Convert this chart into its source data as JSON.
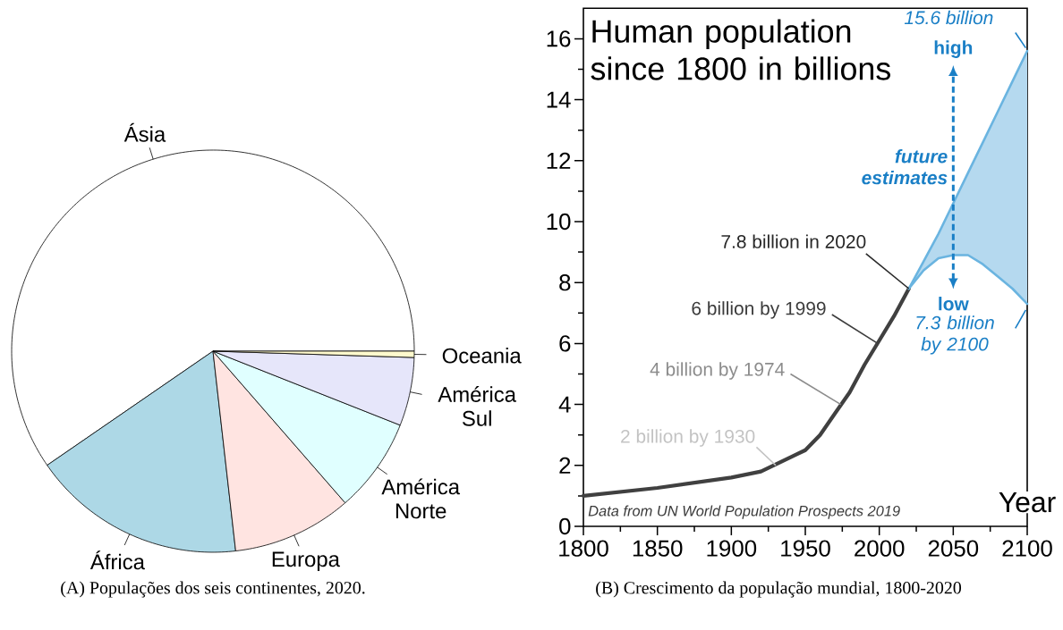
{
  "chart_data": [
    {
      "type": "pie",
      "categories": [
        "Ásia",
        "África",
        "Europa",
        "América Norte",
        "América Sul",
        "Oceania"
      ],
      "values": [
        59.6,
        17.2,
        9.6,
        7.6,
        5.5,
        0.5
      ],
      "colors": [
        "#ffffff",
        "#add8e6",
        "#ffe4e1",
        "#e0ffff",
        "#e6e6fa",
        "#fffacd"
      ],
      "annotations": [
        "(A) Populações dos seis continentes, 2020."
      ]
    },
    {
      "type": "line",
      "title": "Human population since 1800 in billions",
      "xlabel": "Year",
      "xlim": [
        1800,
        2100
      ],
      "ylim": [
        0,
        17
      ],
      "xticks": [
        1800,
        {
          "value": 1825,
          "label": null
        },
        1850,
        {
          "value": 1875,
          "label": null
        },
        1900,
        {
          "value": 1925,
          "label": null
        },
        1950,
        {
          "value": 1975,
          "label": null
        },
        2000,
        {
          "value": 2025,
          "label": null
        },
        2050,
        {
          "value": 2075,
          "label": null
        },
        2100
      ],
      "yticks": [
        0,
        {
          "value": 1,
          "label": null
        },
        2,
        {
          "value": 3,
          "label": null
        },
        4,
        {
          "value": 5,
          "label": null
        },
        6,
        {
          "value": 7,
          "label": null
        },
        8,
        {
          "value": 9,
          "label": null
        },
        10,
        {
          "value": 11,
          "label": null
        },
        12,
        {
          "value": 13,
          "label": null
        },
        14,
        {
          "value": 15,
          "label": null
        },
        16
      ],
      "series": [
        {
          "color": "#404040",
          "x": [
            1800,
            1850,
            1900,
            1920,
            1950,
            1960,
            1970,
            1980,
            1990,
            2000,
            2010,
            2020
          ],
          "values": [
            1.0,
            1.26,
            1.6,
            1.8,
            2.5,
            3.0,
            3.7,
            4.4,
            5.3,
            6.1,
            6.9,
            7.8
          ]
        },
        {
          "color": "#6ab4e0",
          "x": [
            2020,
            2030,
            2040,
            2050,
            2060,
            2070,
            2080,
            2090,
            2100
          ],
          "values": [
            7.8,
            8.7,
            9.6,
            10.6,
            11.6,
            12.6,
            13.6,
            14.6,
            15.6
          ],
          "lower": [
            7.8,
            8.4,
            8.8,
            8.9,
            8.9,
            8.6,
            8.2,
            7.8,
            7.3
          ],
          "upper": [
            7.8,
            8.7,
            9.6,
            10.6,
            11.6,
            12.6,
            13.6,
            14.6,
            15.6
          ]
        },
        {
          "color": "#6ab4e0",
          "x": [
            2020,
            2030,
            2040,
            2050,
            2060,
            2070,
            2080,
            2090,
            2100
          ],
          "values": [
            7.8,
            8.4,
            8.8,
            8.9,
            8.9,
            8.6,
            8.2,
            7.8,
            7.3
          ]
        }
      ],
      "annotations": [
        "Data from UN World Population Prospects 2019",
        {
          "text": "7.8 billion in 2020",
          "x": 2020,
          "y": 7.8
        },
        {
          "text": "6 billion by 1999",
          "x": 1999,
          "y": 6
        },
        {
          "text": "4 billion by 1974",
          "x": 1974,
          "y": 4
        },
        {
          "text": "2 billion by 1930",
          "x": 1930,
          "y": 2
        },
        {
          "text": "15.6 billion",
          "x": 2100,
          "y": 15.6
        },
        "high",
        "low",
        {
          "text": "7.3 billion by 2100",
          "x": 2100,
          "y": 7.3
        },
        "future estimates",
        "(B) Crescimento da população mundial, 1800-2020"
      ]
    }
  ]
}
